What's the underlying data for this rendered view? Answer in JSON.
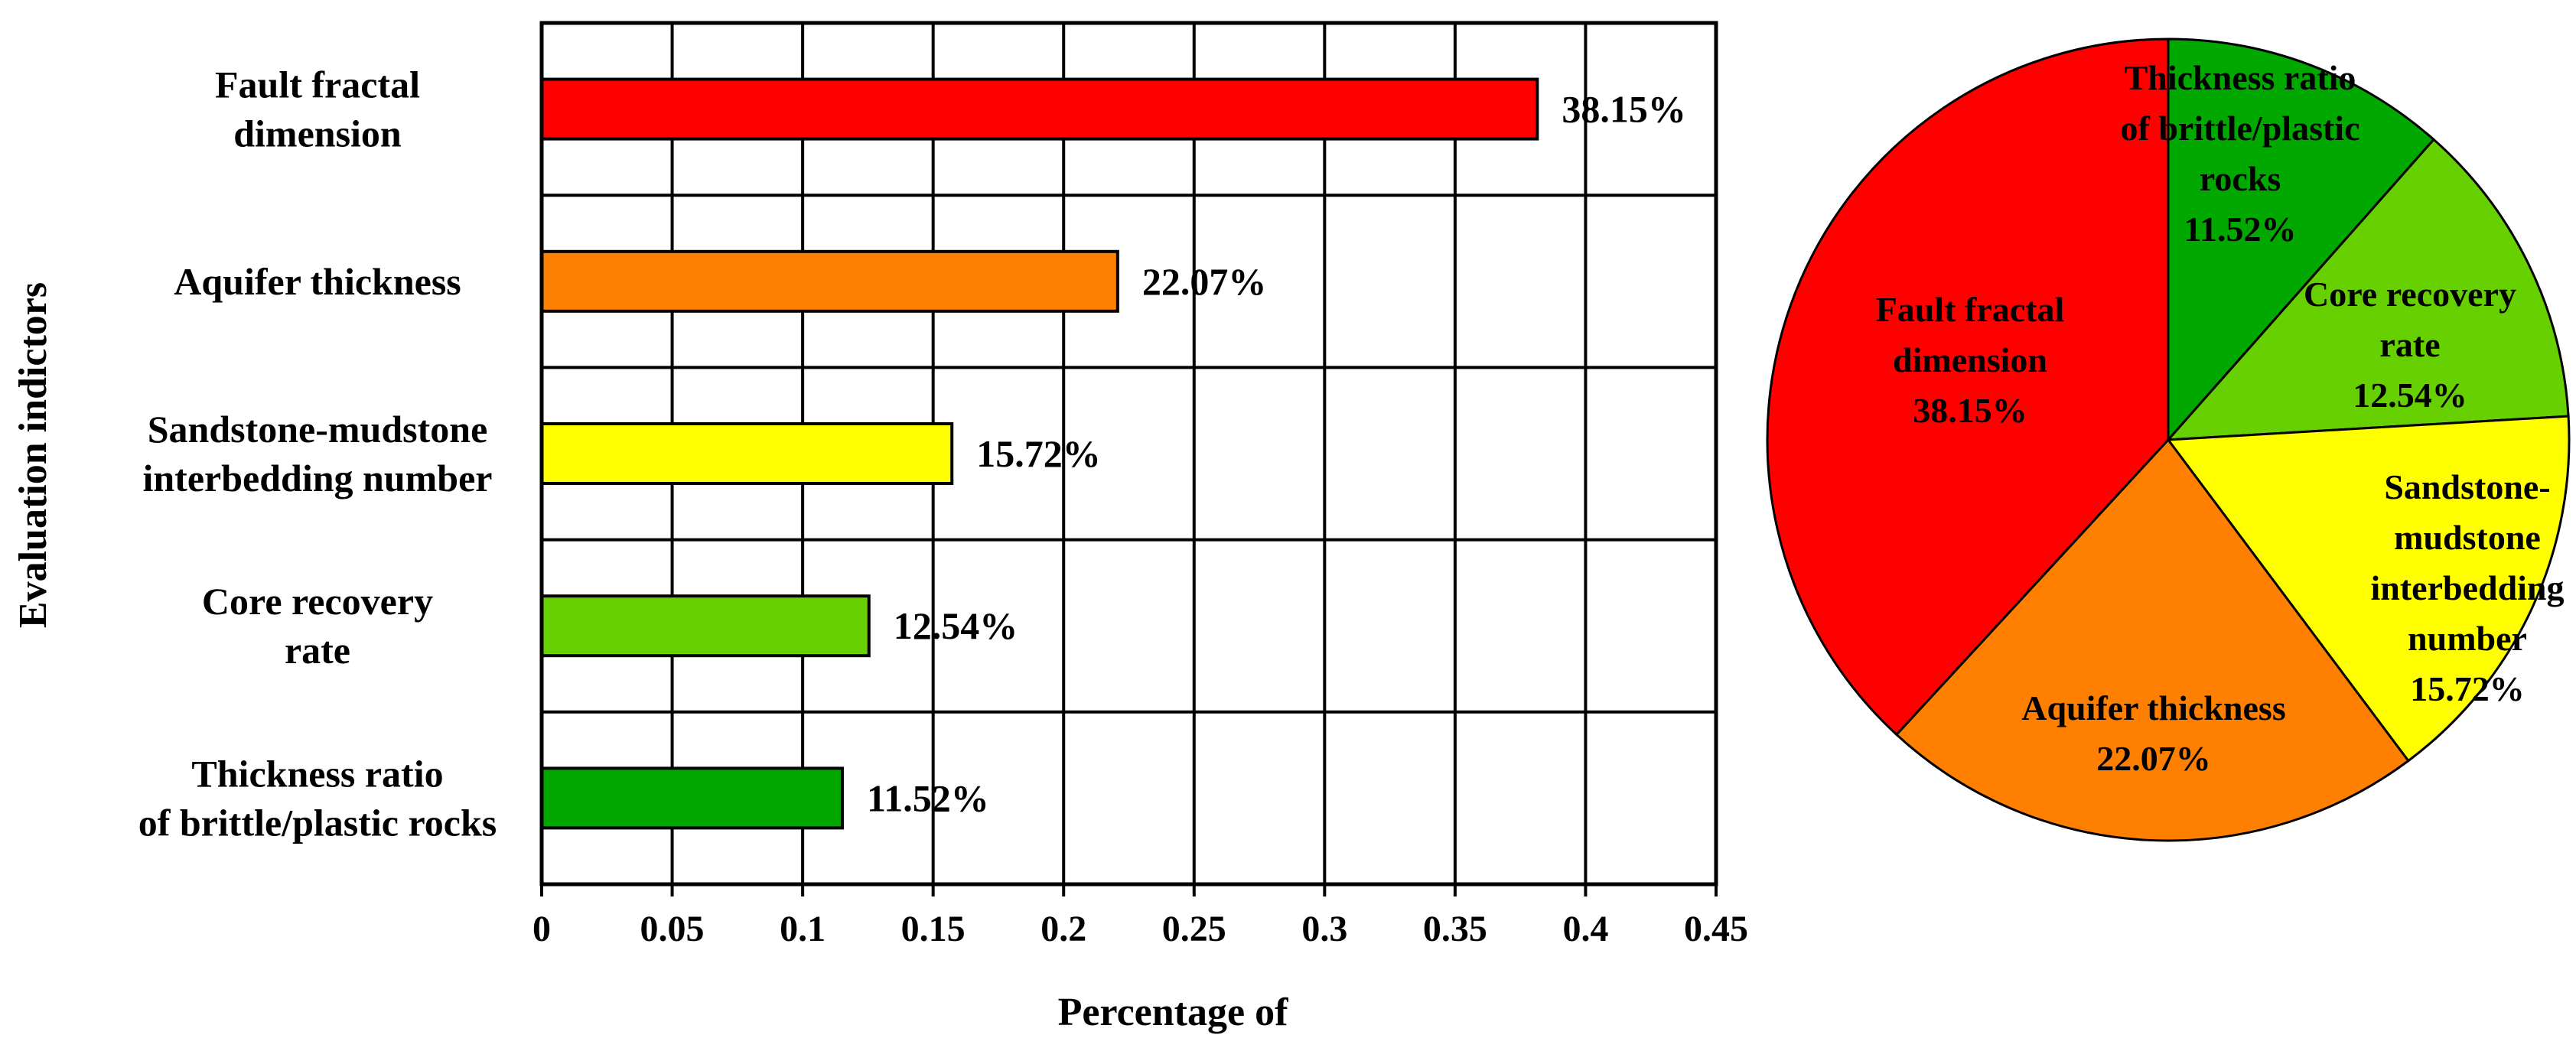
{
  "chart_data": [
    {
      "type": "bar",
      "orientation": "horizontal",
      "categories": [
        "Fault fractal\ndimension",
        "Aquifer thickness",
        "Sandstone-mudstone\ninterbedding number",
        "Core recovery\nrate",
        "Thickness ratio\nof brittle/plastic rocks"
      ],
      "values": [
        0.3815,
        0.2207,
        0.1572,
        0.1254,
        0.1152
      ],
      "value_labels": [
        "38.15%",
        "22.07%",
        "15.72%",
        "12.54%",
        "11.52%"
      ],
      "colors": [
        "#ff0000",
        "#ff8000",
        "#ffff00",
        "#66d000",
        "#00a800"
      ],
      "xlabel": "Percentage of",
      "ylabel": "Evaluation indictors",
      "xlim": [
        0,
        0.45
      ],
      "xticks": [
        "0",
        "0.05",
        "0.1",
        "0.15",
        "0.2",
        "0.25",
        "0.3",
        "0.35",
        "0.4",
        "0.45"
      ],
      "grid": true
    },
    {
      "type": "pie",
      "start": "top",
      "direction": "clockwise",
      "slices": [
        {
          "label": "Thickness ratio\nof brittle/plastic\nrocks\n11.52%",
          "value": 11.52,
          "color": "#00a800"
        },
        {
          "label": "Core recovery\nrate\n12.54%",
          "value": 12.54,
          "color": "#66d000"
        },
        {
          "label": "Sandstone-\nmudstone\ninterbedding\nnumber\n15.72%",
          "value": 15.72,
          "color": "#ffff00"
        },
        {
          "label": "Aquifer thickness\n22.07%",
          "value": 22.07,
          "color": "#ff8000"
        },
        {
          "label": "Fault fractal\ndimension\n38.15%",
          "value": 38.15,
          "color": "#ff0000"
        }
      ]
    }
  ]
}
